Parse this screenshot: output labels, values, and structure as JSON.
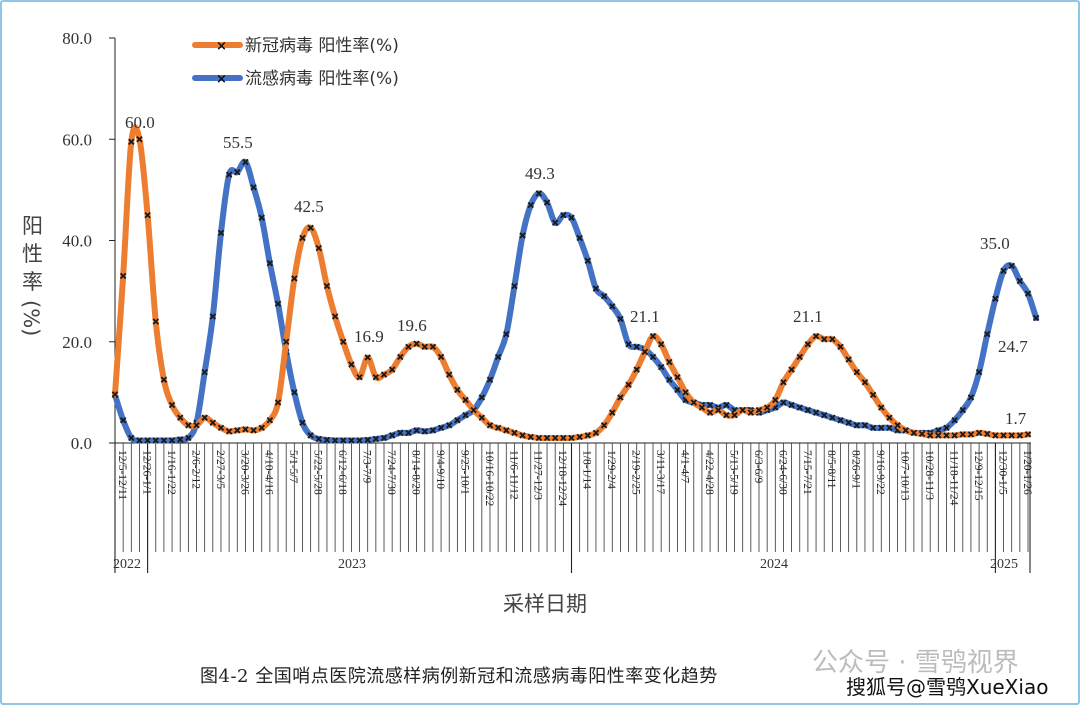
{
  "chart_data": {
    "type": "line",
    "title": "图4-2   全国哨点医院流感样病例新冠和流感病毒阳性率变化趋势",
    "xlabel": "采样日期",
    "ylabel": "阳性率(%)",
    "ylim": [
      0,
      80
    ],
    "yticks": [
      "0.0",
      "20.0",
      "40.0",
      "60.0",
      "80.0"
    ],
    "grid": false,
    "legend_position": "top-left-inside",
    "x_tick_labels": [
      "12/5-12/11",
      "12/26-1/1",
      "1/16-1/22",
      "2/6-2/12",
      "2/27-3/5",
      "3/20-3/26",
      "4/10-4/16",
      "5/1-5/7",
      "5/22-5/28",
      "6/12-6/18",
      "7/3-7/9",
      "7/24-7/30",
      "8/14-8/20",
      "9/4-9/10",
      "9/25-10/1",
      "10/16-10/22",
      "11/6-11/12",
      "11/27-12/3",
      "12/18-12/24",
      "1/8-1/14",
      "1/29-2/4",
      "2/19-2/25",
      "3/11-3/17",
      "4/1-4/7",
      "4/22-4/28",
      "5/13-5/19",
      "6/3-6/9",
      "6/24-6/30",
      "7/15-7/21",
      "8/5-8/11",
      "8/26-9/1",
      "9/16-9/22",
      "10/7-10/13",
      "10/28-11/3",
      "11/18-11/24",
      "12/9-12/15",
      "12/30-1/5",
      "1/20-1/26"
    ],
    "years": [
      "2022",
      "2023",
      "2024",
      "2025"
    ],
    "series": [
      {
        "name": "新冠病毒 阳性率(%)",
        "color": "#ed7d31",
        "values": [
          9.6,
          33.0,
          59.5,
          60.0,
          45.0,
          24.0,
          12.5,
          7.5,
          5.0,
          3.5,
          3.5,
          5.0,
          4.0,
          3.0,
          2.3,
          2.5,
          2.7,
          2.5,
          3.0,
          4.5,
          8.0,
          20.0,
          32.5,
          40.5,
          42.5,
          38.5,
          31.0,
          25.0,
          20.0,
          15.5,
          13.0,
          16.9,
          13.0,
          13.5,
          14.5,
          17.0,
          19.0,
          19.6,
          19.0,
          19.0,
          17.0,
          13.5,
          10.5,
          8.5,
          6.5,
          5.0,
          3.5,
          3.0,
          2.5,
          2.0,
          1.5,
          1.2,
          1.0,
          1.0,
          1.0,
          1.0,
          1.0,
          1.2,
          1.5,
          2.0,
          3.5,
          6.0,
          9.0,
          11.5,
          14.5,
          18.0,
          21.1,
          19.5,
          16.0,
          13.0,
          10.0,
          8.0,
          7.0,
          6.0,
          6.5,
          5.5,
          5.5,
          6.5,
          6.0,
          6.5,
          7.0,
          8.5,
          12.0,
          14.5,
          17.0,
          19.5,
          21.1,
          20.5,
          20.5,
          19.0,
          16.5,
          14.0,
          12.0,
          9.5,
          7.0,
          5.0,
          3.5,
          2.5,
          2.0,
          1.8,
          1.5,
          1.5,
          1.5,
          1.5,
          1.7,
          1.7,
          2.0,
          1.8,
          1.5,
          1.5,
          1.5,
          1.5,
          1.7
        ]
      },
      {
        "name": "流感病毒 阳性率(%)",
        "color": "#4472c4",
        "values": [
          9.5,
          4.5,
          1.0,
          0.5,
          0.5,
          0.5,
          0.5,
          0.5,
          0.7,
          1.0,
          4.0,
          14.0,
          25.0,
          41.5,
          53.0,
          53.5,
          55.5,
          50.5,
          44.5,
          35.5,
          27.5,
          18.0,
          10.0,
          4.0,
          1.5,
          0.8,
          0.6,
          0.5,
          0.5,
          0.5,
          0.5,
          0.6,
          0.8,
          1.0,
          1.5,
          2.0,
          2.0,
          2.5,
          2.3,
          2.5,
          3.0,
          3.5,
          4.5,
          5.5,
          6.5,
          9.0,
          12.5,
          17.0,
          21.5,
          31.0,
          41.0,
          47.0,
          49.3,
          47.5,
          43.5,
          45.0,
          44.5,
          40.5,
          36.0,
          30.5,
          29.0,
          27.0,
          24.5,
          19.5,
          19.0,
          18.5,
          17.0,
          15.0,
          12.5,
          10.5,
          8.5,
          8.0,
          7.5,
          7.5,
          7.0,
          7.5,
          6.5,
          6.5,
          6.5,
          6.0,
          6.5,
          7.0,
          8.0,
          7.5,
          7.0,
          6.5,
          6.0,
          5.5,
          5.0,
          4.5,
          4.0,
          3.5,
          3.5,
          3.0,
          3.0,
          3.0,
          2.5,
          2.5,
          2.0,
          2.0,
          2.0,
          2.5,
          3.0,
          4.5,
          6.5,
          9.0,
          14.0,
          21.5,
          28.5,
          34.0,
          35.0,
          32.0,
          29.5,
          24.7
        ]
      }
    ],
    "annotations": [
      {
        "text": "60.0",
        "series": "新冠病毒 阳性率(%)"
      },
      {
        "text": "55.5",
        "series": "流感病毒 阳性率(%)"
      },
      {
        "text": "42.5",
        "series": "新冠病毒 阳性率(%)"
      },
      {
        "text": "16.9",
        "series": "新冠病毒 阳性率(%)"
      },
      {
        "text": "19.6",
        "series": "新冠病毒 阳性率(%)"
      },
      {
        "text": "49.3",
        "series": "流感病毒 阳性率(%)"
      },
      {
        "text": "21.1",
        "series": "新冠病毒 阳性率(%)"
      },
      {
        "text": "21.1",
        "series": "新冠病毒 阳性率(%)"
      },
      {
        "text": "35.0",
        "series": "流感病毒 阳性率(%)"
      },
      {
        "text": "24.7",
        "series": "流感病毒 阳性率(%)"
      },
      {
        "text": "1.7",
        "series": "新冠病毒 阳性率(%)"
      }
    ]
  },
  "legend": {
    "covid_label": "新冠病毒 阳性率(%)",
    "flu_label": "流感病毒 阳性率(%)"
  },
  "axis": {
    "y_title_chars": [
      "阳",
      "性",
      "率",
      "(%)"
    ],
    "x_title": "采样日期"
  },
  "caption": "图4-2   全国哨点医院流感样病例新冠和流感病毒阳性率变化趋势",
  "watermark": {
    "line1": "公众号 · 雪鸮视界",
    "line2": "搜狐号@雪鸮XueXiao"
  }
}
